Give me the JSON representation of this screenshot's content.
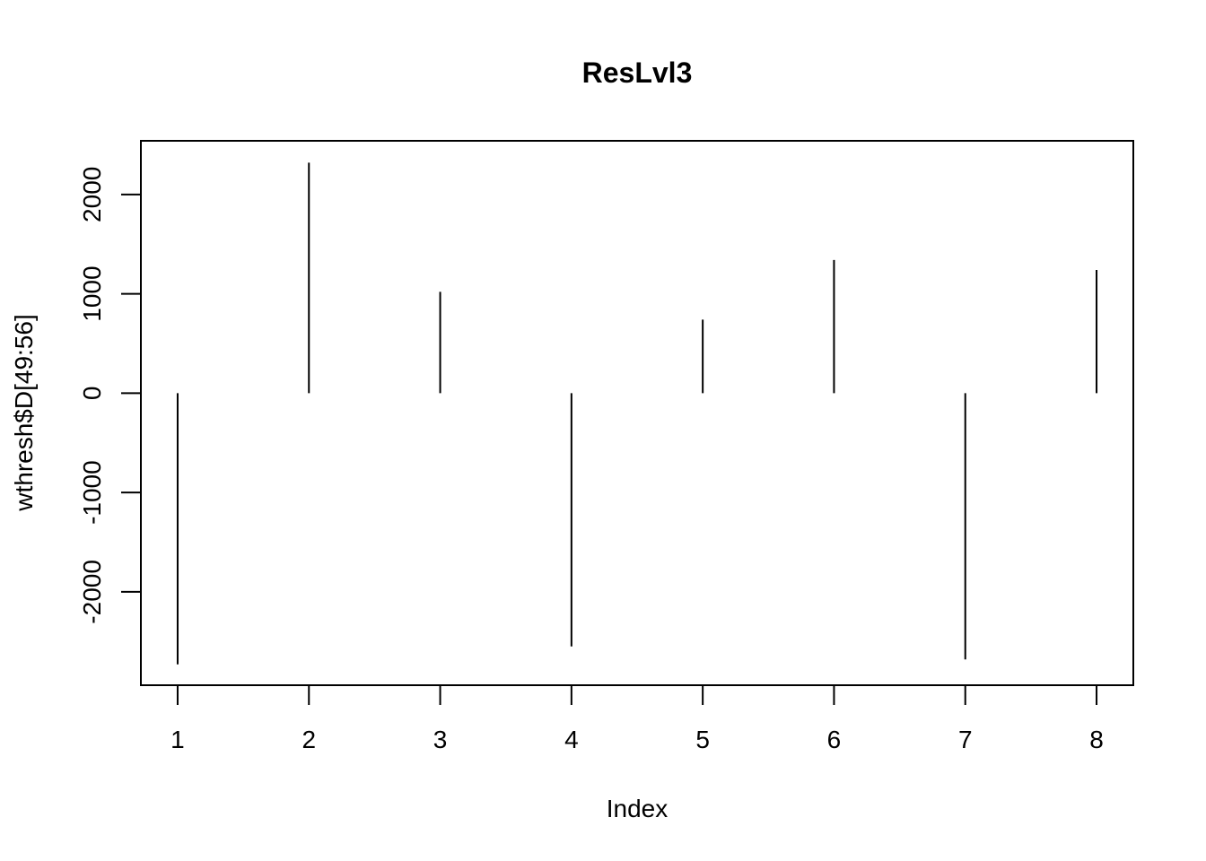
{
  "chart_data": {
    "type": "bar",
    "style": "vertical-lines (R plot type='h')",
    "title": "ResLvl3",
    "xlabel": "Index",
    "ylabel": "wthresh$D[49:56]",
    "x": [
      1,
      2,
      3,
      4,
      5,
      6,
      7,
      8
    ],
    "values": [
      -2730,
      2320,
      1020,
      -2550,
      740,
      1340,
      -2680,
      1240
    ],
    "xlim": [
      0.72,
      8.28
    ],
    "ylim": [
      -2940,
      2540
    ],
    "x_ticks": [
      1,
      2,
      3,
      4,
      5,
      6,
      7,
      8
    ],
    "x_tick_labels": [
      "1",
      "2",
      "3",
      "4",
      "5",
      "6",
      "7",
      "8"
    ],
    "y_ticks": [
      -2000,
      -1000,
      0,
      1000,
      2000
    ],
    "y_tick_labels": [
      "-2000",
      "-1000",
      "0",
      "1000",
      "2000"
    ],
    "grid": false,
    "legend": "none",
    "colors": {
      "line": "#000000",
      "frame": "#000000",
      "background": "#ffffff"
    }
  }
}
